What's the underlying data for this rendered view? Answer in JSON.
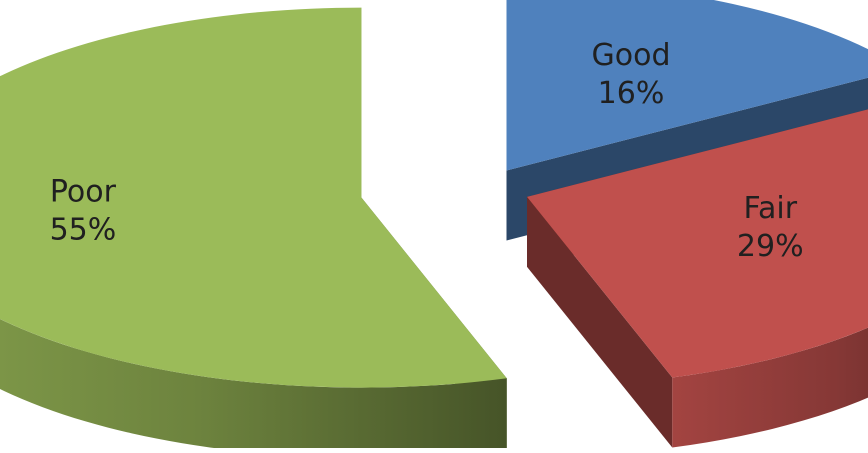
{
  "chart_data": {
    "type": "pie",
    "style": "3d-exploded",
    "title": "",
    "legend": "none",
    "slices": [
      {
        "label": "Good",
        "value": 16,
        "value_label": "16%",
        "color": "#4f81bd"
      },
      {
        "label": "Fair",
        "value": 29,
        "value_label": "29%",
        "color": "#c0504d"
      },
      {
        "label": "Poor",
        "value": 55,
        "value_label": "55%",
        "color": "#9bbb59"
      }
    ]
  }
}
